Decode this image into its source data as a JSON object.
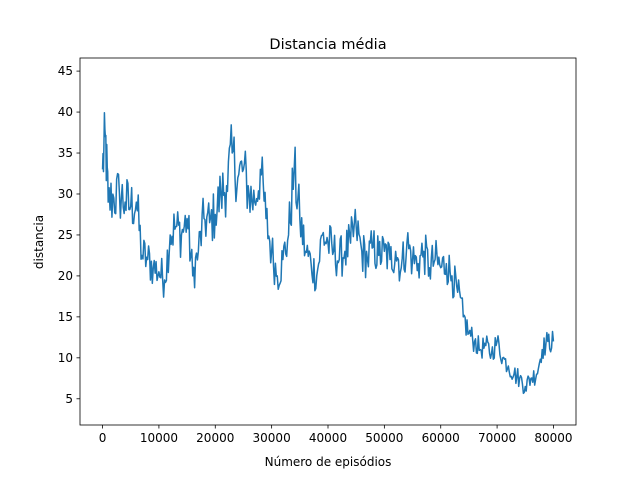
{
  "chart_data": {
    "type": "line",
    "title": "Distancia média",
    "xlabel": "Número de episódios",
    "ylabel": "distancia",
    "xlim": [
      -4000,
      84000
    ],
    "ylim": [
      1.8,
      46.6
    ],
    "xticks": [
      0,
      10000,
      20000,
      30000,
      40000,
      50000,
      60000,
      70000,
      80000
    ],
    "xtick_labels": [
      "0",
      "10000",
      "20000",
      "30000",
      "40000",
      "50000",
      "60000",
      "70000",
      "80000"
    ],
    "yticks": [
      5,
      10,
      15,
      20,
      25,
      30,
      35,
      40,
      45
    ],
    "ytick_labels": [
      "5",
      "10",
      "15",
      "20",
      "25",
      "30",
      "35",
      "40",
      "45"
    ],
    "grid": false,
    "line_color": "#1f77b4",
    "series": [
      {
        "x": [
          0,
          500,
          1000,
          2000,
          3000,
          4000,
          5000,
          6000,
          7000,
          8000,
          9000,
          10000,
          11000,
          12000,
          13000,
          14000,
          15000,
          16000,
          17000,
          18000,
          19000,
          20000,
          21000,
          22000,
          23000,
          24000,
          25000,
          26000,
          27000,
          28000,
          29000,
          30000,
          31000,
          32000,
          33000,
          34000,
          35000,
          36000,
          37000,
          38000,
          39000,
          40000,
          41000,
          42000,
          43000,
          44000,
          45000,
          46000,
          47000,
          48000,
          49000,
          50000,
          51000,
          52000,
          53000,
          54000,
          55000,
          56000,
          57000,
          58000,
          59000,
          60000,
          61000,
          62000,
          63000,
          64000,
          65000,
          66000,
          67000,
          68000,
          69000,
          70000,
          71000,
          72000,
          73000,
          74000,
          75000,
          76000,
          77000,
          78000,
          79000,
          80000
        ],
        "y": [
          33,
          37,
          29,
          29.5,
          30,
          29,
          28.5,
          29,
          22.5,
          22,
          21,
          20.5,
          19.5,
          25,
          26,
          25,
          27,
          20,
          23,
          27,
          26.5,
          27.5,
          30,
          31,
          35,
          32,
          33,
          30,
          29,
          33,
          27,
          23,
          20,
          22,
          25,
          33,
          27,
          23,
          21.5,
          20,
          25,
          24,
          23,
          22,
          23,
          24,
          26,
          23,
          22,
          23.5,
          22.5,
          23,
          22,
          23,
          21,
          24,
          22,
          21.5,
          23,
          21,
          22,
          21,
          21.5,
          20,
          18,
          15,
          13,
          12,
          11,
          11.5,
          10.5,
          12,
          10,
          9,
          8,
          7.5,
          6.5,
          7.5,
          8,
          11,
          12,
          12
        ]
      }
    ]
  }
}
